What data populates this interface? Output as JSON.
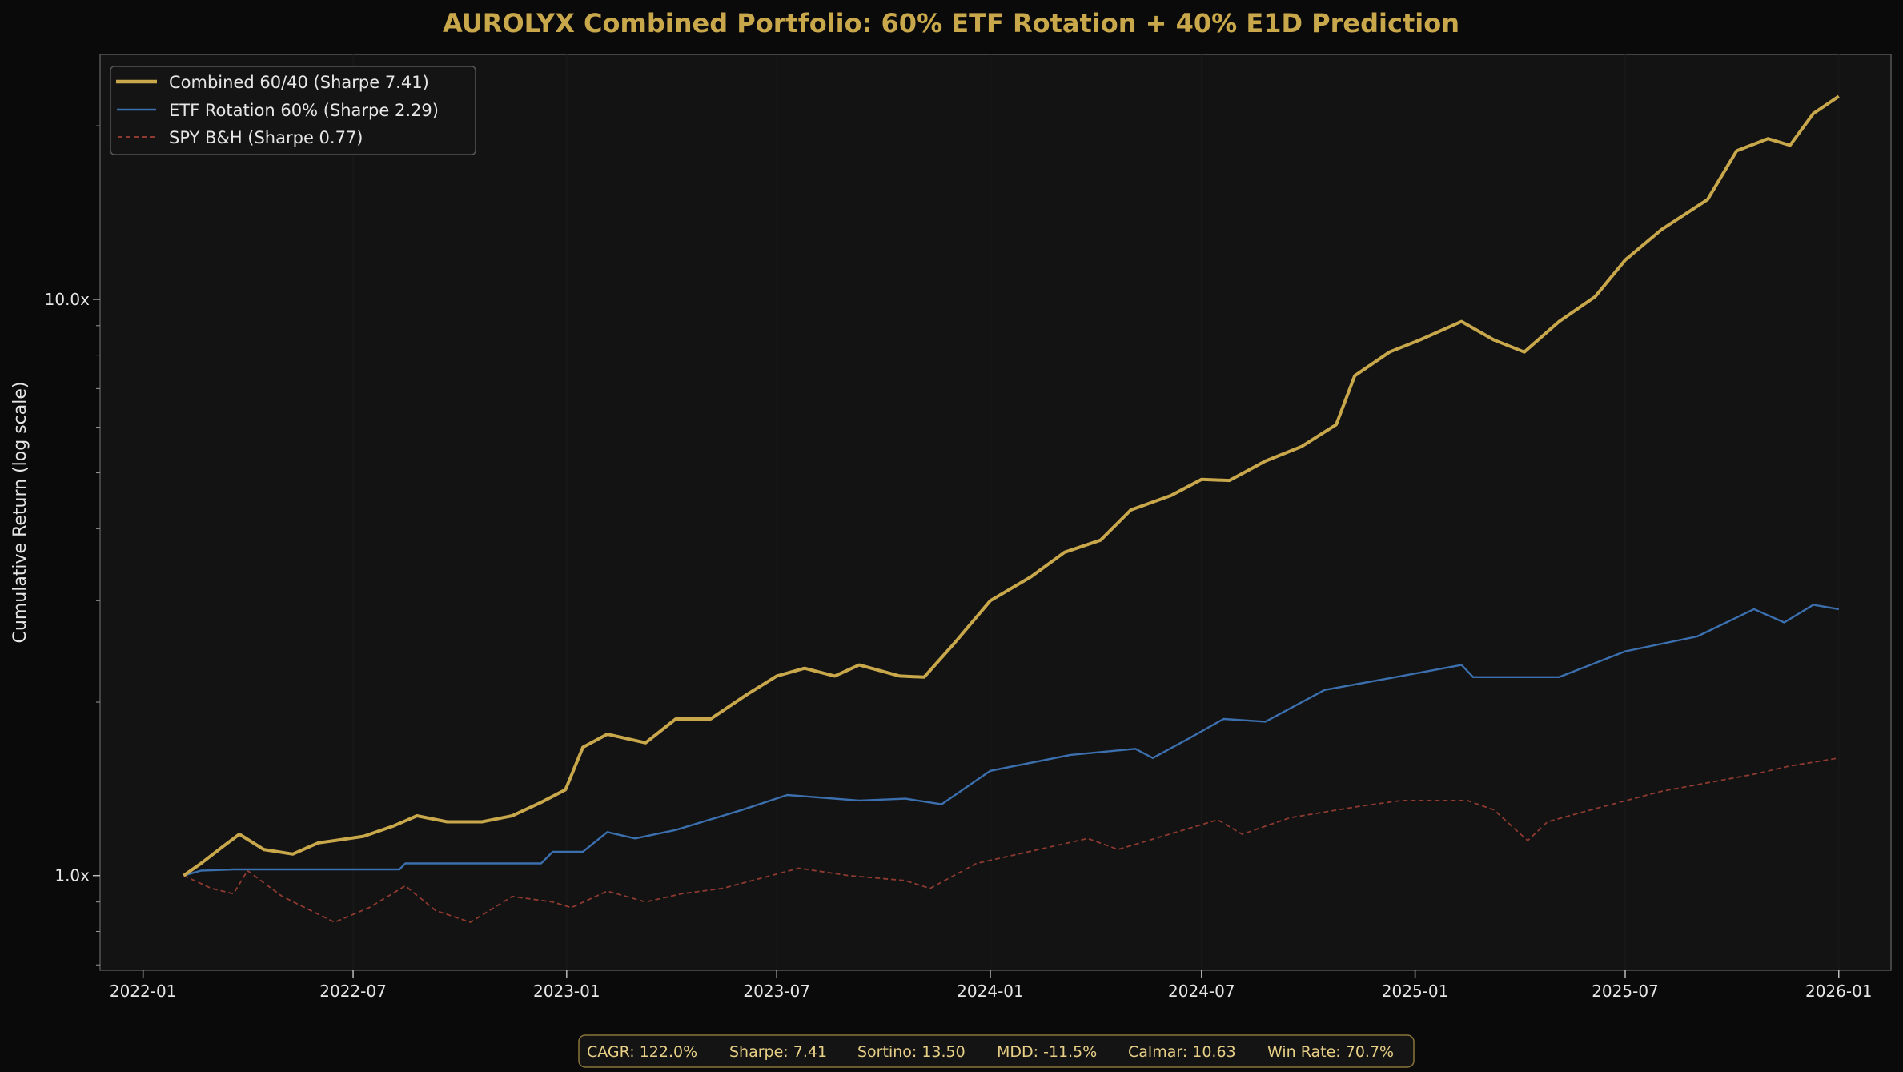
{
  "chart_data": {
    "type": "line",
    "title": "AUROLYX  Combined Portfolio: 60% ETF Rotation + 40% E1D Prediction",
    "xlabel": "",
    "ylabel": "Cumulative Return (log scale)",
    "yscale": "log",
    "ylim": [
      0.685,
      26.6
    ],
    "xlim": [
      "2021-11-25",
      "2026-02-15"
    ],
    "grid": false,
    "legend_position": "top-left",
    "x_ticks": [
      "2022-01",
      "2022-07",
      "2023-01",
      "2023-07",
      "2024-01",
      "2024-07",
      "2025-01",
      "2025-07",
      "2026-01"
    ],
    "y_ticks": [
      {
        "value": 1,
        "label": "1.0x"
      },
      {
        "value": 10,
        "label": "10.0x"
      }
    ],
    "colors": {
      "background": "#0a0a0a",
      "plot": "#131313",
      "title": "#c9a84c",
      "combined": "#c9a84c",
      "etf": "#3b6fae",
      "spy": "#8e3a30"
    },
    "series": [
      {
        "name": "Combined 60/40  (Sharpe 7.41)",
        "style": "solid-thick",
        "color": "#c9a84c",
        "x": [
          "2022-02-05",
          "2022-02-20",
          "2022-03-10",
          "2022-03-25",
          "2022-04-15",
          "2022-05-10",
          "2022-06-01",
          "2022-06-15",
          "2022-07-10",
          "2022-08-05",
          "2022-08-25",
          "2022-09-20",
          "2022-10-20",
          "2022-11-15",
          "2022-12-10",
          "2022-12-31",
          "2023-01-15",
          "2023-02-05",
          "2023-03-10",
          "2023-04-05",
          "2023-05-05",
          "2023-06-05",
          "2023-07-01",
          "2023-07-25",
          "2023-08-20",
          "2023-09-10",
          "2023-10-15",
          "2023-11-05",
          "2023-12-01",
          "2024-01-01",
          "2024-02-05",
          "2024-03-05",
          "2024-04-05",
          "2024-05-01",
          "2024-06-05",
          "2024-07-01",
          "2024-07-25",
          "2024-08-25",
          "2024-09-25",
          "2024-10-25",
          "2024-11-10",
          "2024-12-10",
          "2025-01-05",
          "2025-02-10",
          "2025-03-10",
          "2025-04-05",
          "2025-05-05",
          "2025-06-05",
          "2025-07-01",
          "2025-08-01",
          "2025-09-10",
          "2025-10-05",
          "2025-11-01",
          "2025-11-20",
          "2025-12-10",
          "2026-01-01"
        ],
        "values": [
          1.0,
          1.05,
          1.12,
          1.18,
          1.11,
          1.09,
          1.14,
          1.15,
          1.17,
          1.22,
          1.27,
          1.24,
          1.24,
          1.27,
          1.34,
          1.41,
          1.67,
          1.76,
          1.7,
          1.87,
          1.87,
          2.06,
          2.22,
          2.29,
          2.22,
          2.32,
          2.22,
          2.21,
          2.53,
          3.0,
          3.3,
          3.64,
          3.82,
          4.31,
          4.57,
          4.87,
          4.85,
          5.24,
          5.55,
          6.06,
          7.37,
          8.1,
          8.5,
          9.15,
          8.5,
          8.1,
          9.15,
          10.1,
          11.7,
          13.2,
          14.9,
          18.1,
          19.0,
          18.5,
          21.0,
          22.5
        ]
      },
      {
        "name": "ETF Rotation 60%  (Sharpe 2.29)",
        "style": "solid",
        "color": "#3b6fae",
        "x": [
          "2022-02-05",
          "2022-02-20",
          "2022-03-20",
          "2022-04-01",
          "2022-08-10",
          "2022-08-15",
          "2022-12-10",
          "2022-12-20",
          "2023-01-15",
          "2023-02-05",
          "2023-03-01",
          "2023-04-05",
          "2023-06-01",
          "2023-07-10",
          "2023-09-10",
          "2023-10-20",
          "2023-11-20",
          "2024-01-01",
          "2024-03-10",
          "2024-05-05",
          "2024-05-20",
          "2024-06-20",
          "2024-07-20",
          "2024-08-25",
          "2024-10-15",
          "2024-12-15",
          "2025-02-10",
          "2025-02-20",
          "2025-05-05",
          "2025-07-01",
          "2025-09-01",
          "2025-10-20",
          "2025-11-15",
          "2025-12-10",
          "2026-01-01"
        ],
        "values": [
          1.0,
          1.02,
          1.025,
          1.025,
          1.025,
          1.05,
          1.05,
          1.1,
          1.1,
          1.19,
          1.16,
          1.2,
          1.3,
          1.38,
          1.35,
          1.36,
          1.33,
          1.52,
          1.62,
          1.66,
          1.6,
          1.73,
          1.87,
          1.85,
          2.1,
          2.21,
          2.32,
          2.21,
          2.21,
          2.45,
          2.6,
          2.9,
          2.75,
          2.95,
          2.9
        ]
      },
      {
        "name": "SPY B&H  (Sharpe 0.77)",
        "style": "dashed",
        "color": "#8e3a30",
        "x": [
          "2022-02-05",
          "2022-03-01",
          "2022-03-20",
          "2022-04-01",
          "2022-05-01",
          "2022-06-15",
          "2022-07-15",
          "2022-08-15",
          "2022-09-10",
          "2022-10-10",
          "2022-11-15",
          "2022-12-20",
          "2023-01-05",
          "2023-02-05",
          "2023-03-10",
          "2023-04-10",
          "2023-05-15",
          "2023-07-20",
          "2023-09-01",
          "2023-10-20",
          "2023-11-10",
          "2023-12-20",
          "2024-03-25",
          "2024-04-20",
          "2024-07-15",
          "2024-08-05",
          "2024-09-15",
          "2024-11-15",
          "2024-12-20",
          "2025-02-15",
          "2025-03-10",
          "2025-04-08",
          "2025-04-25",
          "2025-06-01",
          "2025-08-01",
          "2025-10-20",
          "2025-11-20",
          "2026-01-01"
        ],
        "values": [
          1.0,
          0.95,
          0.93,
          1.02,
          0.92,
          0.83,
          0.88,
          0.96,
          0.87,
          0.83,
          0.92,
          0.9,
          0.88,
          0.94,
          0.9,
          0.93,
          0.95,
          1.03,
          1.0,
          0.98,
          0.95,
          1.05,
          1.16,
          1.11,
          1.25,
          1.18,
          1.26,
          1.32,
          1.35,
          1.35,
          1.3,
          1.15,
          1.24,
          1.3,
          1.4,
          1.5,
          1.55,
          1.6
        ]
      }
    ]
  },
  "stats": {
    "cagr": "CAGR: 122.0%",
    "sharpe": "Sharpe: 7.41",
    "sortino": "Sortino: 13.50",
    "mdd": "MDD: -11.5%",
    "calmar": "Calmar: 10.63",
    "win_rate": "Win Rate: 70.7%"
  }
}
